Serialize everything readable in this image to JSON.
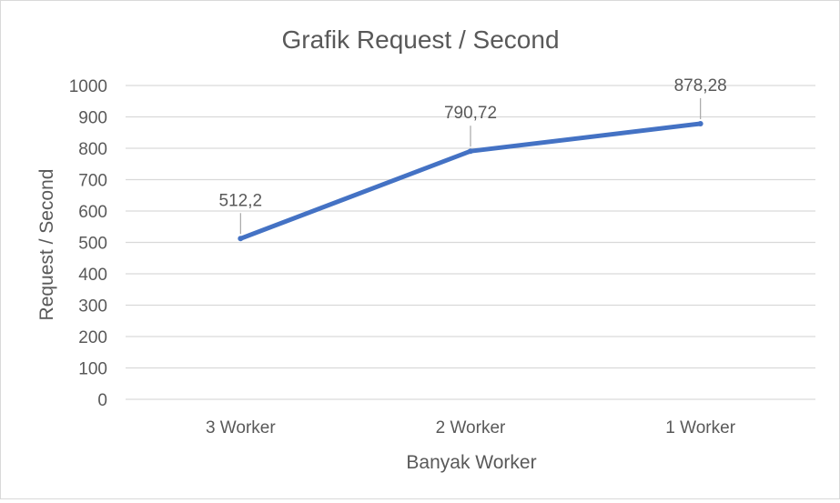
{
  "chart_data": {
    "type": "line",
    "title": "Grafik Request  / Second",
    "xlabel": "Banyak Worker",
    "ylabel": "Request / Second",
    "categories": [
      "3 Worker",
      "2 Worker",
      "1 Worker"
    ],
    "series": [
      {
        "values": [
          512.2,
          790.72,
          878.28
        ],
        "data_labels": [
          "512,2",
          "790,72",
          "878,28"
        ],
        "color": "#4472c4"
      }
    ],
    "ylim": [
      0,
      1000
    ],
    "yticks": [
      0,
      100,
      200,
      300,
      400,
      500,
      600,
      700,
      800,
      900,
      1000
    ],
    "grid": true,
    "legend": "none"
  },
  "colors": {
    "gridline": "#d9d9d9",
    "text": "#595959",
    "leader_line": "#a6a6a6"
  }
}
